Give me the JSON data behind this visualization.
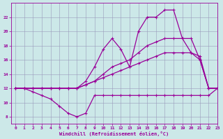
{
  "xlabel": "Windchill (Refroidissement éolien,°C)",
  "bg_color": "#cce8e8",
  "line_color": "#990099",
  "grid_color": "#9999bb",
  "ylim": [
    7,
    24
  ],
  "xlim": [
    -0.5,
    23
  ],
  "yticks": [
    8,
    10,
    12,
    14,
    16,
    18,
    20,
    22
  ],
  "xticks": [
    0,
    1,
    2,
    3,
    4,
    5,
    6,
    7,
    8,
    9,
    10,
    11,
    12,
    13,
    14,
    15,
    16,
    17,
    18,
    19,
    20,
    21,
    22,
    23
  ],
  "curve_upper_x": [
    0,
    1,
    2,
    3,
    4,
    5,
    6,
    7,
    8,
    9,
    10,
    11,
    12,
    13,
    14,
    15,
    16,
    17,
    18,
    19,
    20,
    21,
    22,
    23
  ],
  "curve_upper_y": [
    12,
    12,
    12,
    12,
    12,
    12,
    12,
    12,
    13,
    15,
    17.5,
    19,
    17.5,
    15,
    20,
    22,
    22,
    23,
    23,
    19,
    19,
    16,
    12,
    12
  ],
  "curve_mid_upper_x": [
    0,
    1,
    2,
    3,
    4,
    5,
    6,
    7,
    8,
    9,
    10,
    11,
    12,
    13,
    14,
    15,
    16,
    17,
    18,
    19,
    20,
    21,
    22,
    23
  ],
  "curve_mid_upper_y": [
    12,
    12,
    12,
    12,
    12,
    12,
    12,
    12,
    12.5,
    13,
    14,
    15,
    15.5,
    16,
    17,
    18,
    18.5,
    19,
    19,
    19,
    17,
    16,
    12,
    12
  ],
  "curve_mid_lower_x": [
    0,
    1,
    2,
    3,
    4,
    5,
    6,
    7,
    8,
    9,
    10,
    11,
    12,
    13,
    14,
    15,
    16,
    17,
    18,
    19,
    20,
    21,
    22,
    23
  ],
  "curve_mid_lower_y": [
    12,
    12,
    12,
    12,
    12,
    12,
    12,
    12,
    12.5,
    13,
    13.5,
    14,
    14.5,
    15,
    15.5,
    16,
    16.5,
    17,
    17,
    17,
    17,
    16.5,
    12,
    12
  ],
  "curve_lower_x": [
    0,
    1,
    2,
    3,
    4,
    5,
    6,
    7,
    8,
    9,
    10,
    11,
    12,
    13,
    14,
    15,
    16,
    17,
    18,
    19,
    20,
    21,
    22,
    23
  ],
  "curve_lower_y": [
    12,
    12,
    11.5,
    11,
    10.5,
    9.5,
    8.5,
    8,
    8.5,
    11,
    11,
    11,
    11,
    11,
    11,
    11,
    11,
    11,
    11,
    11,
    11,
    11,
    11,
    12
  ]
}
